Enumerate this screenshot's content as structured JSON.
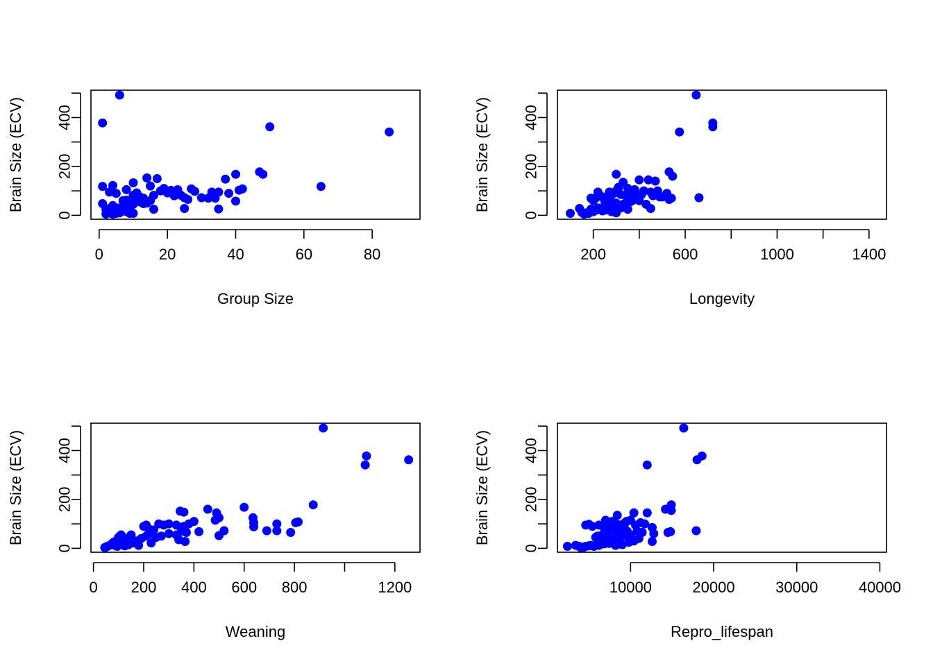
{
  "chart_data": [
    {
      "type": "scatter",
      "xlabel": "Group Size",
      "ylabel": "Brain Size (ECV)",
      "xlim": [
        -2.4,
        94.0
      ],
      "ylim": [
        -16,
        512
      ],
      "xticks": [
        0,
        20,
        40,
        60,
        80
      ],
      "xtick_labels": [
        "0",
        "20",
        "40",
        "60",
        "80"
      ],
      "yticks": [
        0,
        100,
        200,
        300,
        400,
        500
      ],
      "ytick_labels": [
        "0",
        "",
        "200",
        "",
        "400",
        ""
      ],
      "point_color": "#0000ff",
      "points": [
        [
          6,
          492
        ],
        [
          1,
          378
        ],
        [
          50,
          362
        ],
        [
          85,
          341
        ],
        [
          65,
          118
        ],
        [
          47,
          178
        ],
        [
          48,
          168
        ],
        [
          40,
          168
        ],
        [
          37,
          148
        ],
        [
          14,
          153
        ],
        [
          17,
          150
        ],
        [
          1,
          118
        ],
        [
          4,
          122
        ],
        [
          10,
          133
        ],
        [
          3,
          95
        ],
        [
          5,
          90
        ],
        [
          8,
          105
        ],
        [
          10,
          82
        ],
        [
          11,
          92
        ],
        [
          12,
          75
        ],
        [
          13,
          70
        ],
        [
          15,
          120
        ],
        [
          16,
          82
        ],
        [
          18,
          100
        ],
        [
          19,
          110
        ],
        [
          20,
          92
        ],
        [
          21,
          102
        ],
        [
          22,
          80
        ],
        [
          23,
          105
        ],
        [
          24,
          82
        ],
        [
          25,
          72
        ],
        [
          26,
          65
        ],
        [
          27,
          108
        ],
        [
          28,
          98
        ],
        [
          30,
          72
        ],
        [
          32,
          70
        ],
        [
          33,
          95
        ],
        [
          34,
          70
        ],
        [
          35,
          95
        ],
        [
          38,
          90
        ],
        [
          40,
          58
        ],
        [
          41,
          103
        ],
        [
          42,
          108
        ],
        [
          16,
          25
        ],
        [
          25,
          28
        ],
        [
          35,
          26
        ],
        [
          1,
          48
        ],
        [
          2,
          25
        ],
        [
          3,
          12
        ],
        [
          4,
          5
        ],
        [
          5,
          30
        ],
        [
          6,
          10
        ],
        [
          7,
          40
        ],
        [
          8,
          15
        ],
        [
          9,
          30
        ],
        [
          10,
          8
        ],
        [
          2,
          5
        ],
        [
          4,
          40
        ],
        [
          5,
          8
        ],
        [
          6,
          18
        ],
        [
          7,
          60
        ],
        [
          8,
          45
        ],
        [
          9,
          52
        ],
        [
          3,
          28
        ],
        [
          12,
          55
        ],
        [
          13,
          48
        ],
        [
          11,
          65
        ],
        [
          14,
          50
        ],
        [
          15,
          60
        ],
        [
          9,
          8
        ],
        [
          7,
          22
        ],
        [
          6,
          25
        ],
        [
          10,
          45
        ],
        [
          8,
          62
        ]
      ]
    },
    {
      "type": "scatter",
      "xlabel": "Longevity",
      "ylabel": "Brain Size (ECV)",
      "xlim": [
        44,
        1476
      ],
      "ylim": [
        -16,
        512
      ],
      "xticks": [
        200,
        400,
        600,
        800,
        1000,
        1200,
        1400
      ],
      "xtick_labels": [
        "200",
        "",
        "600",
        "",
        "1000",
        "",
        "1400"
      ],
      "yticks": [
        0,
        100,
        200,
        300,
        400,
        500
      ],
      "ytick_labels": [
        "0",
        "",
        "200",
        "",
        "400",
        ""
      ],
      "point_color": "#0000ff",
      "points": [
        [
          648,
          492
        ],
        [
          720,
          378
        ],
        [
          720,
          362
        ],
        [
          575,
          341
        ],
        [
          660,
          72
        ],
        [
          530,
          178
        ],
        [
          545,
          160
        ],
        [
          300,
          168
        ],
        [
          440,
          145
        ],
        [
          470,
          140
        ],
        [
          400,
          145
        ],
        [
          330,
          135
        ],
        [
          310,
          115
        ],
        [
          350,
          110
        ],
        [
          380,
          105
        ],
        [
          420,
          100
        ],
        [
          450,
          95
        ],
        [
          480,
          100
        ],
        [
          520,
          90
        ],
        [
          540,
          70
        ],
        [
          500,
          75
        ],
        [
          460,
          80
        ],
        [
          410,
          85
        ],
        [
          390,
          70
        ],
        [
          370,
          60
        ],
        [
          340,
          80
        ],
        [
          320,
          85
        ],
        [
          300,
          100
        ],
        [
          290,
          90
        ],
        [
          270,
          95
        ],
        [
          260,
          70
        ],
        [
          250,
          60
        ],
        [
          240,
          75
        ],
        [
          230,
          80
        ],
        [
          220,
          95
        ],
        [
          210,
          70
        ],
        [
          200,
          60
        ],
        [
          190,
          70
        ],
        [
          280,
          55
        ],
        [
          300,
          50
        ],
        [
          330,
          45
        ],
        [
          360,
          55
        ],
        [
          400,
          60
        ],
        [
          430,
          45
        ],
        [
          450,
          28
        ],
        [
          350,
          25
        ],
        [
          100,
          8
        ],
        [
          140,
          28
        ],
        [
          150,
          12
        ],
        [
          160,
          5
        ],
        [
          180,
          8
        ],
        [
          200,
          15
        ],
        [
          210,
          20
        ],
        [
          220,
          30
        ],
        [
          230,
          25
        ],
        [
          250,
          40
        ],
        [
          270,
          45
        ],
        [
          290,
          20
        ],
        [
          300,
          10
        ],
        [
          310,
          35
        ],
        [
          320,
          30
        ],
        [
          280,
          15
        ],
        [
          260,
          22
        ],
        [
          240,
          18
        ],
        [
          170,
          10
        ],
        [
          190,
          25
        ],
        [
          530,
          65
        ],
        [
          490,
          75
        ],
        [
          370,
          90
        ],
        [
          260,
          40
        ]
      ]
    },
    {
      "type": "scatter",
      "xlabel": "Weaning",
      "ylabel": "Brain Size (ECV)",
      "xlim": [
        -10,
        1300
      ],
      "ylim": [
        -16,
        512
      ],
      "xticks": [
        0,
        200,
        400,
        600,
        800,
        1000,
        1200
      ],
      "xtick_labels": [
        "0",
        "200",
        "400",
        "600",
        "800",
        "",
        "1200"
      ],
      "yticks": [
        0,
        100,
        200,
        300,
        400,
        500
      ],
      "ytick_labels": [
        "0",
        "",
        "200",
        "",
        "400",
        ""
      ],
      "point_color": "#0000ff",
      "points": [
        [
          915,
          492
        ],
        [
          1087,
          378
        ],
        [
          1082,
          341
        ],
        [
          1255,
          362
        ],
        [
          875,
          178
        ],
        [
          600,
          168
        ],
        [
          455,
          160
        ],
        [
          345,
          152
        ],
        [
          360,
          148
        ],
        [
          490,
          145
        ],
        [
          500,
          125
        ],
        [
          485,
          115
        ],
        [
          635,
          125
        ],
        [
          638,
          105
        ],
        [
          638,
          88
        ],
        [
          730,
          100
        ],
        [
          730,
          72
        ],
        [
          690,
          72
        ],
        [
          785,
          65
        ],
        [
          805,
          105
        ],
        [
          815,
          108
        ],
        [
          520,
          72
        ],
        [
          500,
          52
        ],
        [
          400,
          110
        ],
        [
          380,
          100
        ],
        [
          360,
          90
        ],
        [
          330,
          95
        ],
        [
          300,
          100
        ],
        [
          280,
          95
        ],
        [
          260,
          100
        ],
        [
          240,
          75
        ],
        [
          220,
          80
        ],
        [
          210,
          95
        ],
        [
          200,
          90
        ],
        [
          420,
          68
        ],
        [
          370,
          65
        ],
        [
          350,
          70
        ],
        [
          330,
          55
        ],
        [
          300,
          60
        ],
        [
          270,
          50
        ],
        [
          250,
          45
        ],
        [
          230,
          60
        ],
        [
          210,
          50
        ],
        [
          190,
          40
        ],
        [
          170,
          30
        ],
        [
          150,
          55
        ],
        [
          130,
          40
        ],
        [
          110,
          55
        ],
        [
          100,
          45
        ],
        [
          90,
          30
        ],
        [
          80,
          25
        ],
        [
          70,
          15
        ],
        [
          60,
          10
        ],
        [
          50,
          5
        ],
        [
          45,
          3
        ],
        [
          55,
          8
        ],
        [
          75,
          20
        ],
        [
          85,
          12
        ],
        [
          95,
          8
        ],
        [
          105,
          15
        ],
        [
          115,
          20
        ],
        [
          125,
          10
        ],
        [
          140,
          15
        ],
        [
          160,
          22
        ],
        [
          180,
          12
        ],
        [
          230,
          22
        ],
        [
          340,
          35
        ],
        [
          365,
          28
        ],
        [
          175,
          20
        ],
        [
          130,
          25
        ]
      ]
    },
    {
      "type": "scatter",
      "xlabel": "Repro_lifespan",
      "ylabel": "Brain Size (ECV)",
      "xlim": [
        1200,
        40800
      ],
      "ylim": [
        -16,
        512
      ],
      "xticks": [
        10000,
        20000,
        30000,
        40000
      ],
      "xtick_labels": [
        "10000",
        "20000",
        "30000",
        "40000"
      ],
      "yticks": [
        0,
        100,
        200,
        300,
        400,
        500
      ],
      "ytick_labels": [
        "0",
        "",
        "200",
        "",
        "400",
        ""
      ],
      "point_color": "#0000ff",
      "points": [
        [
          16400,
          492
        ],
        [
          18600,
          378
        ],
        [
          18000,
          362
        ],
        [
          12000,
          341
        ],
        [
          17900,
          72
        ],
        [
          14900,
          178
        ],
        [
          14900,
          155
        ],
        [
          14200,
          160
        ],
        [
          12000,
          145
        ],
        [
          10400,
          145
        ],
        [
          8400,
          135
        ],
        [
          7000,
          115
        ],
        [
          7800,
          110
        ],
        [
          9500,
          110
        ],
        [
          10000,
          115
        ],
        [
          11200,
          105
        ],
        [
          11700,
          100
        ],
        [
          10600,
          95
        ],
        [
          9200,
          90
        ],
        [
          8600,
          85
        ],
        [
          7400,
          100
        ],
        [
          7600,
          80
        ],
        [
          6800,
          85
        ],
        [
          6200,
          95
        ],
        [
          5400,
          90
        ],
        [
          5000,
          98
        ],
        [
          4600,
          95
        ],
        [
          10800,
          70
        ],
        [
          11400,
          65
        ],
        [
          12600,
          85
        ],
        [
          14800,
          68
        ],
        [
          14500,
          65
        ],
        [
          8000,
          75
        ],
        [
          8800,
          65
        ],
        [
          9600,
          70
        ],
        [
          7200,
          60
        ],
        [
          6600,
          55
        ],
        [
          6000,
          50
        ],
        [
          5800,
          45
        ],
        [
          6400,
          40
        ],
        [
          7000,
          35
        ],
        [
          7600,
          40
        ],
        [
          8200,
          45
        ],
        [
          9000,
          50
        ],
        [
          9800,
          45
        ],
        [
          12600,
          28
        ],
        [
          10400,
          30
        ],
        [
          9800,
          25
        ],
        [
          9000,
          15
        ],
        [
          8200,
          12
        ],
        [
          7400,
          20
        ],
        [
          6800,
          18
        ],
        [
          6200,
          12
        ],
        [
          5600,
          8
        ],
        [
          5000,
          10
        ],
        [
          4400,
          5
        ],
        [
          3800,
          8
        ],
        [
          3400,
          12
        ],
        [
          2400,
          8
        ],
        [
          4000,
          3
        ],
        [
          7800,
          22
        ],
        [
          8600,
          28
        ],
        [
          6000,
          22
        ],
        [
          11000,
          40
        ],
        [
          10000,
          55
        ],
        [
          12800,
          60
        ],
        [
          8400,
          98
        ],
        [
          9200,
          102
        ],
        [
          5200,
          12
        ],
        [
          4600,
          8
        ]
      ]
    }
  ]
}
